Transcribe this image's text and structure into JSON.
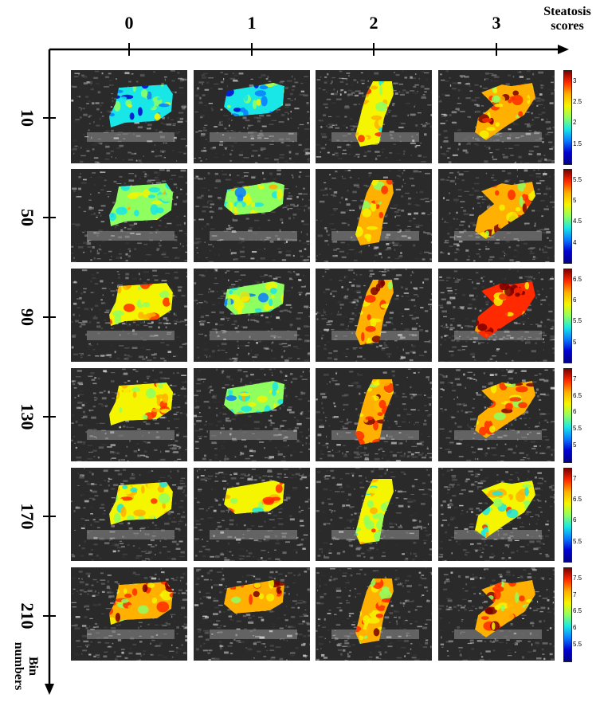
{
  "axes": {
    "x_title_line1": "Steatosis",
    "x_title_line2": "scores",
    "y_title_line1": "Bin",
    "y_title_line2": "numbers"
  },
  "columns": [
    "0",
    "1",
    "2",
    "3"
  ],
  "rows": [
    "10",
    "50",
    "90",
    "130",
    "170",
    "210"
  ],
  "colorbars": [
    [
      "3",
      "2.5",
      "2",
      "1.5"
    ],
    [
      "5.5",
      "5",
      "4.5",
      "4"
    ],
    [
      "6.5",
      "6",
      "5.5",
      "5"
    ],
    [
      "7",
      "6.5",
      "6",
      "5.5",
      "5"
    ],
    [
      "7",
      "6.5",
      "6",
      "5.5"
    ],
    [
      "7.5",
      "7",
      "6.5",
      "6",
      "5.5"
    ]
  ],
  "colormap": [
    "#00008a",
    "#0000d0",
    "#0a7aff",
    "#19e6e6",
    "#8fff60",
    "#f5f500",
    "#ffb000",
    "#ff2a00",
    "#7a0000"
  ]
}
